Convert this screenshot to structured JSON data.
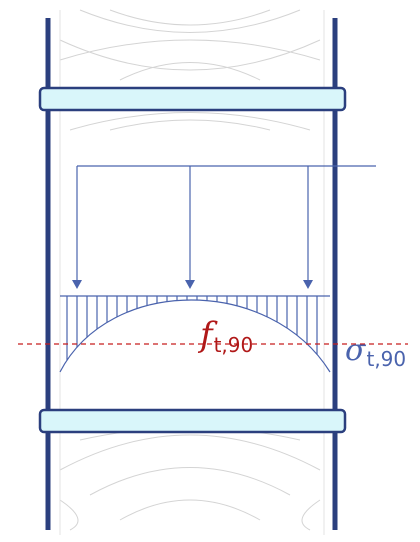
{
  "labels": {
    "strength": {
      "symbol": "f",
      "subscript": "t,90"
    },
    "stress": {
      "symbol": "σ",
      "subscript": "t,90"
    }
  },
  "colors": {
    "strength_label": "#b01818",
    "stress_label": "#4a63ad",
    "reference_line": "#c81e1e",
    "diagram_lines": "#4a63ad",
    "column_edges": "#2b3f7e",
    "bands_fill": "#d9f6fa",
    "bands_stroke": "#2b3f7e",
    "grain_lines": "#d4d4d4"
  },
  "icons": {
    "load_arrow": "arrow-down-icon"
  }
}
